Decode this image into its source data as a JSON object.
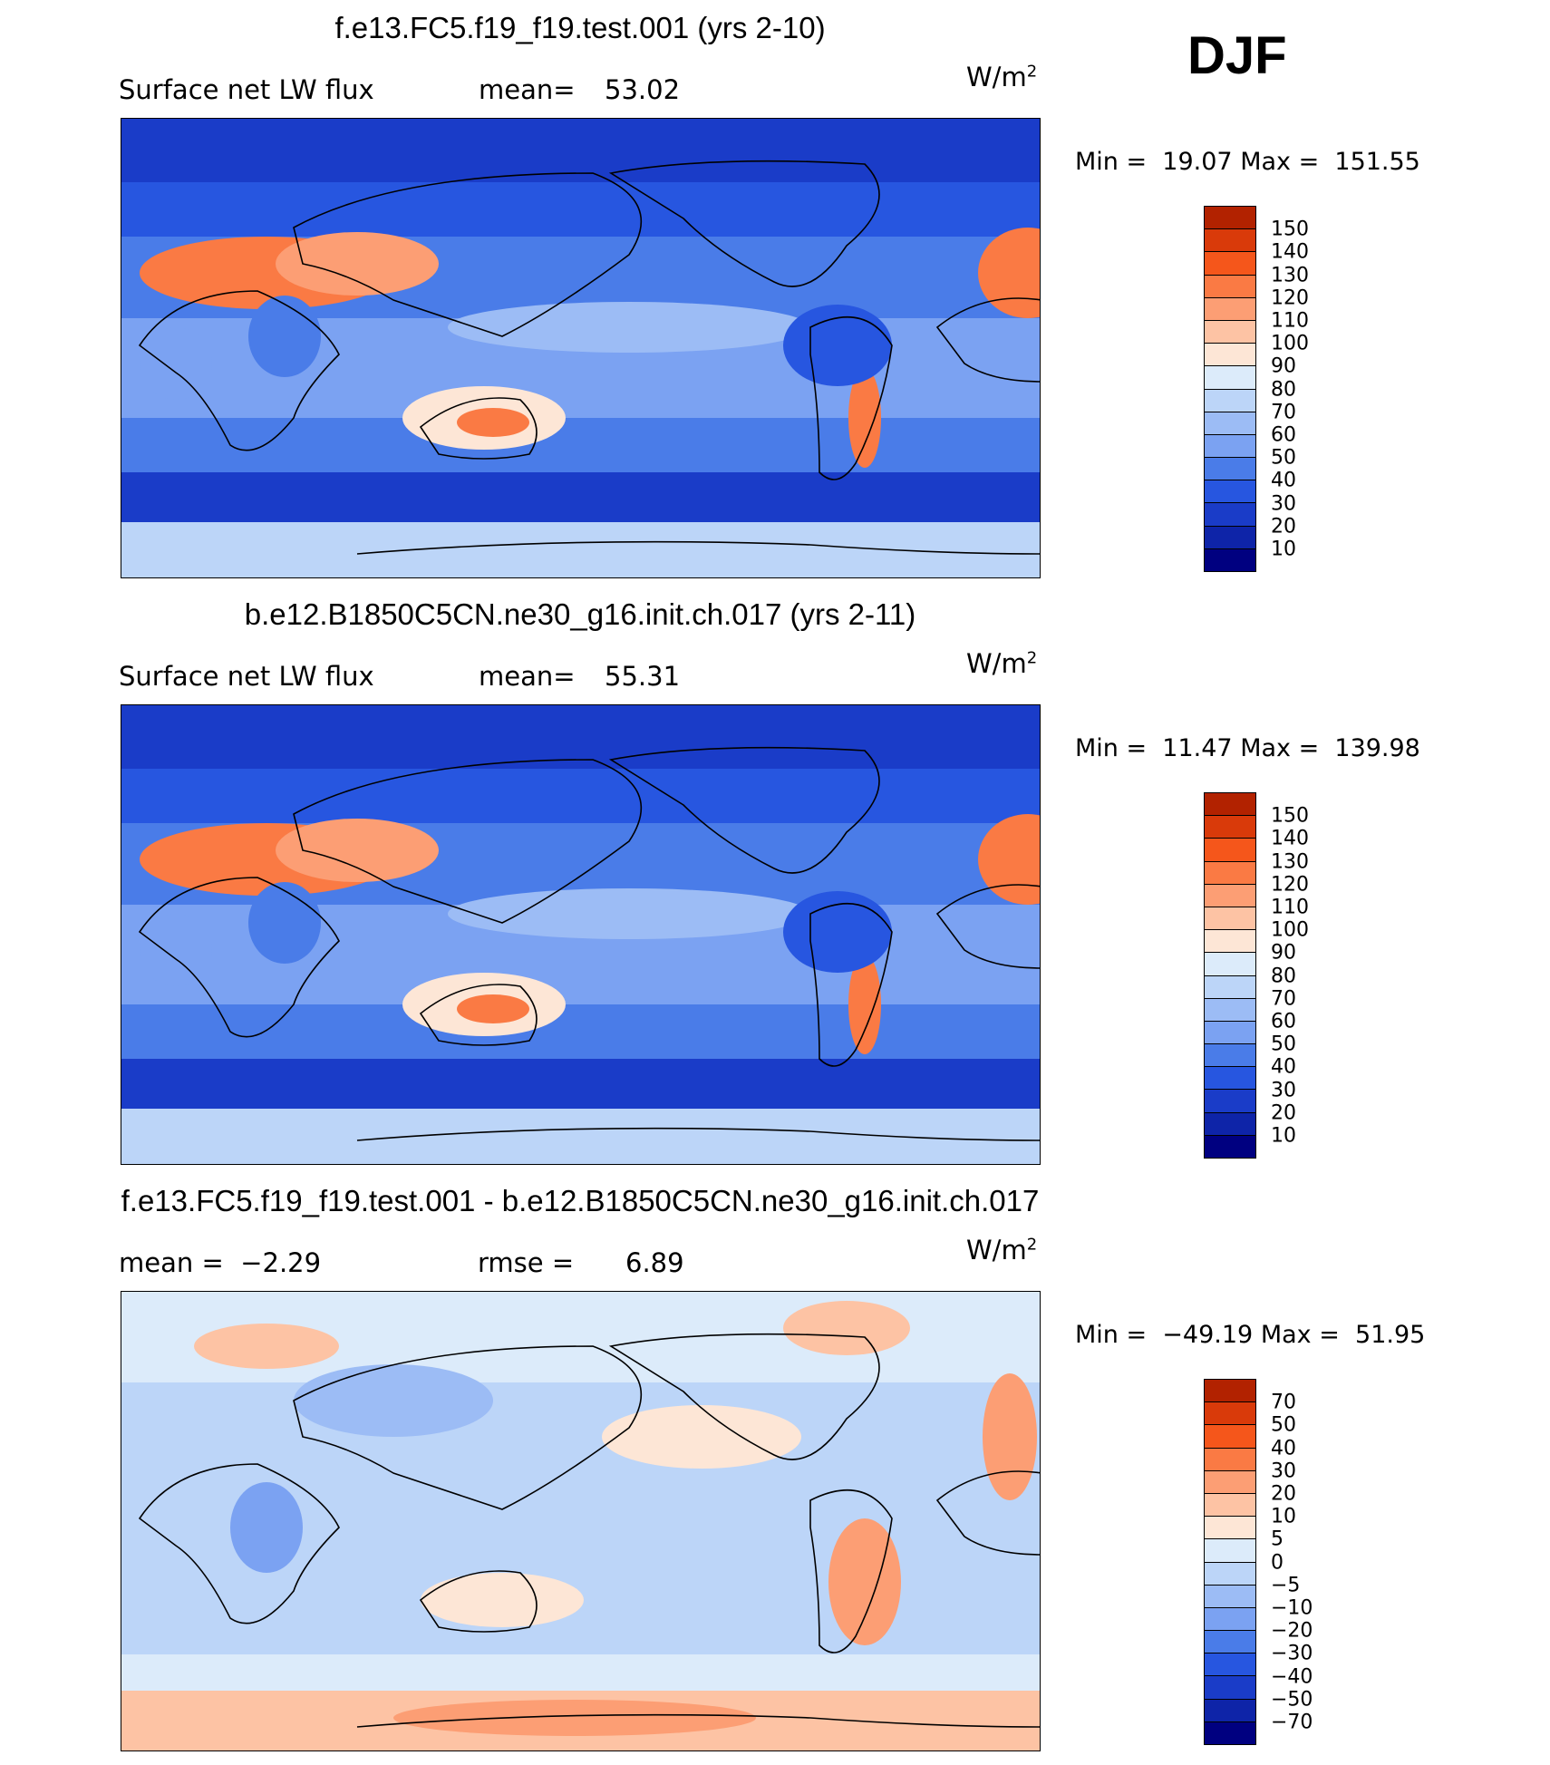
{
  "season": "DJF",
  "unit_base": "W/m",
  "unit_exp": "2",
  "panels": [
    {
      "title": "f.e13.FC5.f19_f19.test.001 (yrs 2-10)",
      "left_text": "Surface net LW flux",
      "mid_label": "mean=",
      "mid_value": "53.02",
      "min_label": "Min =",
      "min_value": "19.07",
      "max_label": "Max =",
      "max_value": "151.55",
      "levels": [
        "150",
        "140",
        "130",
        "120",
        "110",
        "100",
        "90",
        "80",
        "70",
        "60",
        "50",
        "40",
        "30",
        "20",
        "10"
      ],
      "colors": [
        "#8b0000",
        "#b22200",
        "#d93a0a",
        "#f5561b",
        "#fa7a44",
        "#fc9e74",
        "#fdc3a4",
        "#fde6d6",
        "#dcebfa",
        "#bcd5f8",
        "#9cbcf5",
        "#7ba2f2",
        "#4a7ce8",
        "#2756e0",
        "#1a3cc8",
        "#0e24a8",
        "#000080"
      ],
      "scheme": "mean"
    },
    {
      "title": "b.e12.B1850C5CN.ne30_g16.init.ch.017 (yrs 2-11)",
      "left_text": "Surface net LW flux",
      "mid_label": "mean=",
      "mid_value": "55.31",
      "min_label": "Min =",
      "min_value": "11.47",
      "max_label": "Max =",
      "max_value": "139.98",
      "levels": [
        "150",
        "140",
        "130",
        "120",
        "110",
        "100",
        "90",
        "80",
        "70",
        "60",
        "50",
        "40",
        "30",
        "20",
        "10"
      ],
      "colors": [
        "#8b0000",
        "#b22200",
        "#d93a0a",
        "#f5561b",
        "#fa7a44",
        "#fc9e74",
        "#fdc3a4",
        "#fde6d6",
        "#dcebfa",
        "#bcd5f8",
        "#9cbcf5",
        "#7ba2f2",
        "#4a7ce8",
        "#2756e0",
        "#1a3cc8",
        "#0e24a8",
        "#000080"
      ],
      "scheme": "mean"
    },
    {
      "title": "f.e13.FC5.f19_f19.test.001 - b.e12.B1850C5CN.ne30_g16.init.ch.017",
      "left_text": "mean =  −2.29",
      "mid_label": "rmse =",
      "mid_value": "6.89",
      "min_label": "Min =",
      "min_value": "−49.19",
      "max_label": "Max =",
      "max_value": "51.95",
      "levels": [
        "70",
        "50",
        "40",
        "30",
        "20",
        "10",
        "5",
        "0",
        "−5",
        "−10",
        "−20",
        "−30",
        "−40",
        "−50",
        "−70"
      ],
      "colors": [
        "#8b0000",
        "#b22200",
        "#d93a0a",
        "#f5561b",
        "#fa7a44",
        "#fc9e74",
        "#fdc3a4",
        "#fde6d6",
        "#dcebfa",
        "#bcd5f8",
        "#9cbcf5",
        "#7ba2f2",
        "#4a7ce8",
        "#2756e0",
        "#1a3cc8",
        "#0e24a8",
        "#000080"
      ],
      "scheme": "diff"
    }
  ],
  "chart_data": {
    "type": "heatmap",
    "title": "DJF Surface net LW flux",
    "units": "W/m2",
    "maps": [
      {
        "case": "f.e13.FC5.f19_f19.test.001 (yrs 2-10)",
        "mean": 53.02,
        "min": 19.07,
        "max": 151.55,
        "contour_levels": [
          10,
          20,
          30,
          40,
          50,
          60,
          70,
          80,
          90,
          100,
          110,
          120,
          130,
          140,
          150
        ]
      },
      {
        "case": "b.e12.B1850C5CN.ne30_g16.init.ch.017 (yrs 2-11)",
        "mean": 55.31,
        "min": 11.47,
        "max": 139.98,
        "contour_levels": [
          10,
          20,
          30,
          40,
          50,
          60,
          70,
          80,
          90,
          100,
          110,
          120,
          130,
          140,
          150
        ]
      },
      {
        "case": "f.e13.FC5.f19_f19.test.001 - b.e12.B1850C5CN.ne30_g16.init.ch.017",
        "mean": -2.29,
        "rmse": 6.89,
        "min": -49.19,
        "max": 51.95,
        "contour_levels": [
          -70,
          -50,
          -40,
          -30,
          -20,
          -10,
          -5,
          0,
          5,
          10,
          20,
          30,
          40,
          50,
          70
        ]
      }
    ]
  }
}
